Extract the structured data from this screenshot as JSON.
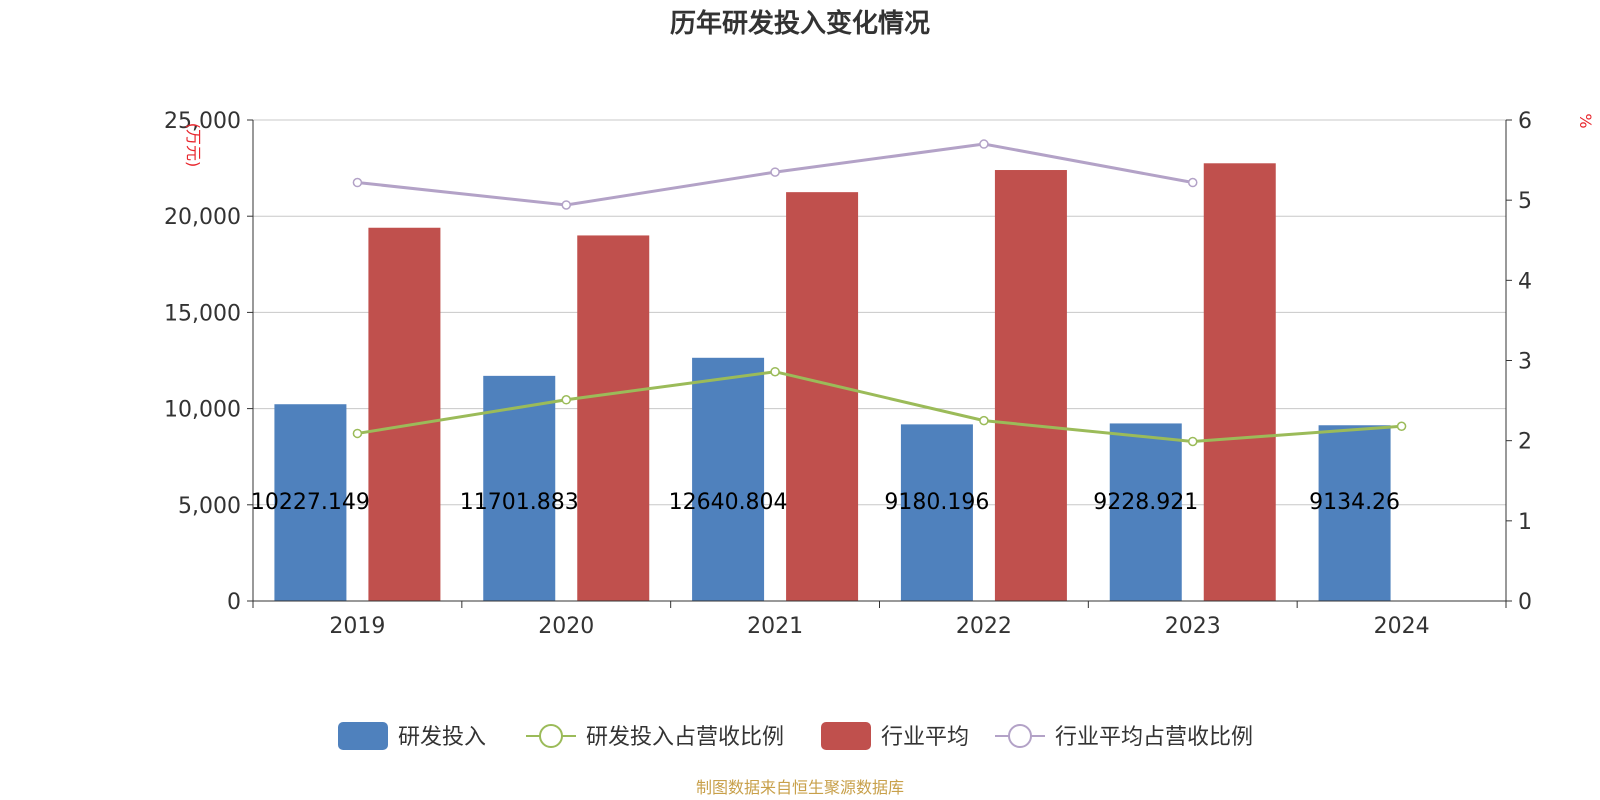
{
  "chart_data": {
    "type": "bar",
    "title": "历年研发投入变化情况",
    "categories": [
      "2019",
      "2020",
      "2021",
      "2022",
      "2023",
      "2024"
    ],
    "left_axis": {
      "unit": "(万元)",
      "ylim": [
        0,
        25000
      ],
      "ticks": [
        0,
        5000,
        10000,
        15000,
        20000,
        25000
      ],
      "tick_labels": [
        "0",
        "5,000",
        "10,000",
        "15,000",
        "20,000",
        "25,000"
      ]
    },
    "right_axis": {
      "unit": "%",
      "ylim": [
        0,
        6
      ],
      "ticks": [
        0,
        1,
        2,
        3,
        4,
        5,
        6
      ],
      "tick_labels": [
        "0",
        "1",
        "2",
        "3",
        "4",
        "5",
        "6"
      ]
    },
    "grid": true,
    "legend_position": "bottom",
    "series": [
      {
        "name": "研发投入",
        "type": "bar",
        "axis": "left",
        "color": "#4f81bd",
        "values": [
          10227.149,
          11701.883,
          12640.804,
          9180.196,
          9228.921,
          9134.26
        ],
        "labels": [
          "10227.149",
          "11701.883",
          "12640.804",
          "9180.196",
          "9228.921",
          "9134.26"
        ]
      },
      {
        "name": "研发投入占营收比例",
        "type": "line",
        "axis": "right",
        "color": "#9bbb59",
        "values": [
          2.09,
          2.51,
          2.86,
          2.25,
          1.99,
          2.18
        ]
      },
      {
        "name": "行业平均",
        "type": "bar",
        "axis": "left",
        "color": "#c0504d",
        "values": [
          19400,
          19000,
          21250,
          22400,
          22750,
          null
        ]
      },
      {
        "name": "行业平均占营收比例",
        "type": "line",
        "axis": "right",
        "color": "#b3a2c7",
        "values": [
          5.22,
          4.94,
          5.35,
          5.7,
          5.22,
          null
        ]
      }
    ],
    "source": "制图数据来自恒生聚源数据库"
  }
}
